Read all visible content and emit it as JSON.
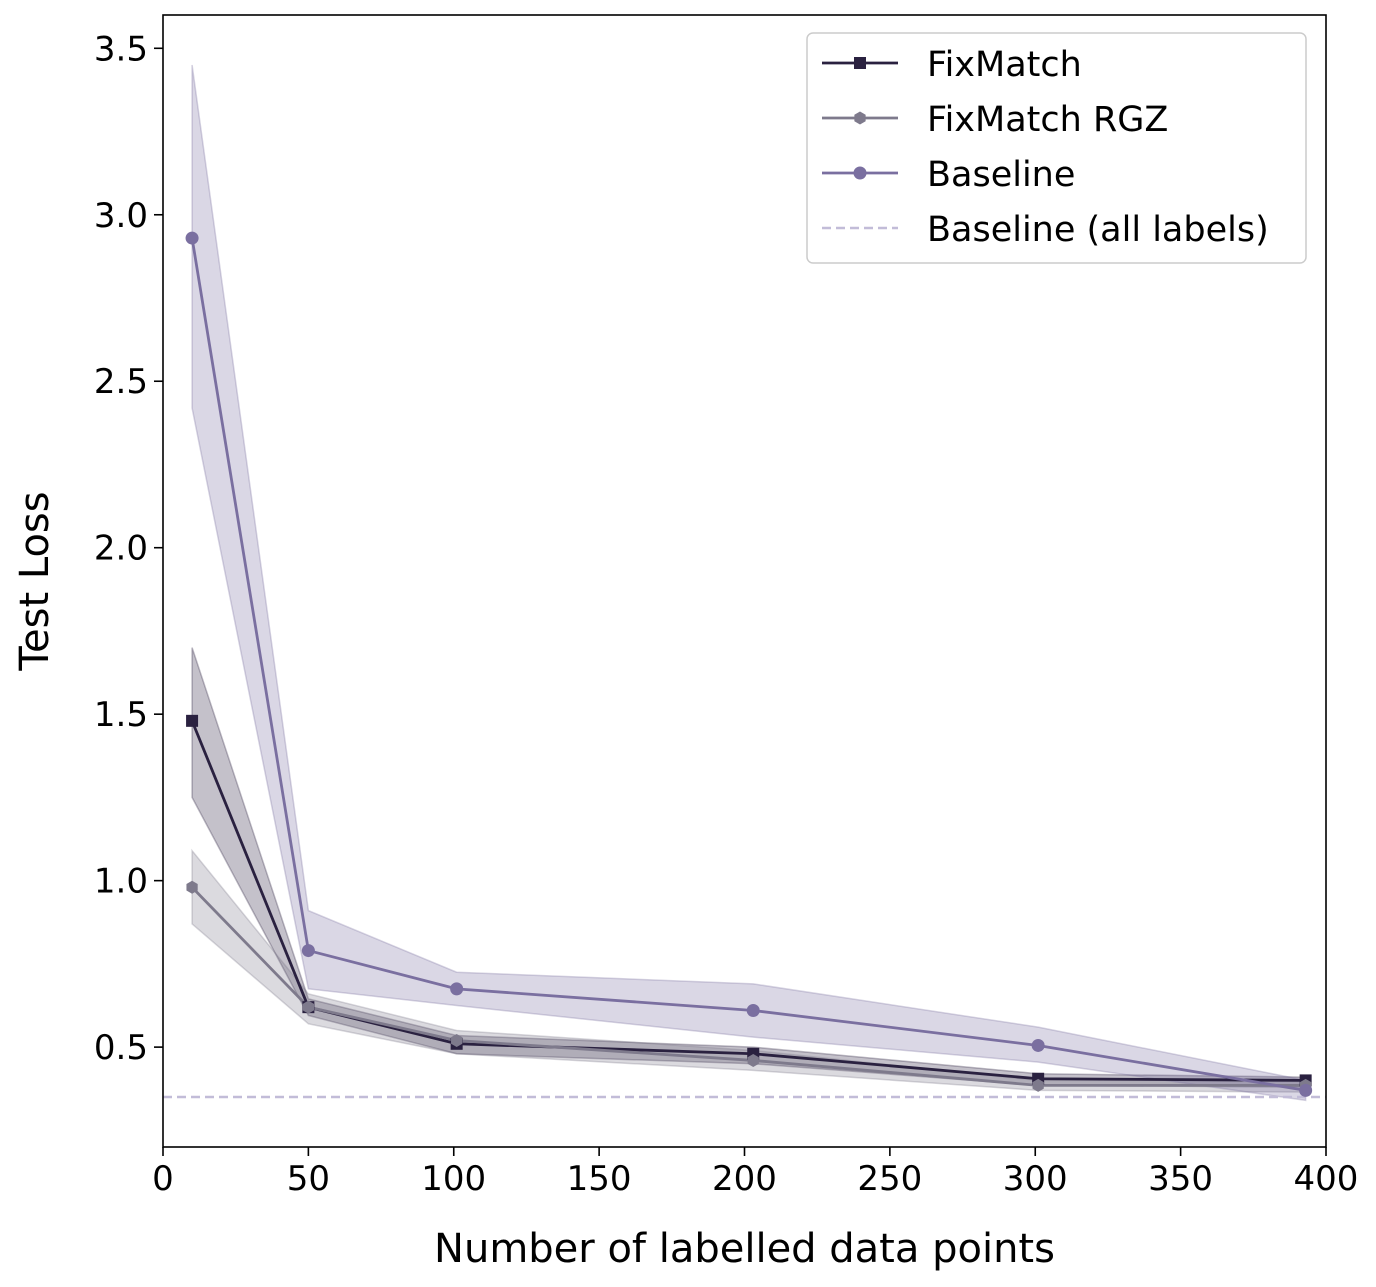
{
  "chart_data": {
    "type": "line",
    "title": "",
    "xlabel": "Number of labelled data points",
    "ylabel": "Test Loss",
    "xlim": [
      0,
      400
    ],
    "ylim": [
      0.2,
      3.6
    ],
    "xticks": [
      0,
      50,
      100,
      150,
      200,
      250,
      300,
      350,
      400
    ],
    "xtick_labels": [
      "0",
      "50",
      "100",
      "150",
      "200",
      "250",
      "300",
      "350",
      "400"
    ],
    "yticks": [
      0.5,
      1.0,
      1.5,
      2.0,
      2.5,
      3.0,
      3.5
    ],
    "ytick_labels": [
      "0.5",
      "1.0",
      "1.5",
      "2.0",
      "2.5",
      "3.0",
      "3.5"
    ],
    "grid": false,
    "legend_position": "top-right",
    "x": [
      10,
      50,
      101,
      203,
      301,
      393
    ],
    "series": [
      {
        "name": "FixMatch",
        "color": "#2a2140",
        "marker": "square",
        "values": [
          1.48,
          0.62,
          0.51,
          0.48,
          0.405,
          0.4
        ],
        "band_lower": [
          1.25,
          0.595,
          0.48,
          0.45,
          0.385,
          0.38
        ],
        "band_upper": [
          1.7,
          0.645,
          0.535,
          0.5,
          0.42,
          0.41
        ]
      },
      {
        "name": "FixMatch RGZ",
        "color": "#7e7a8c",
        "marker": "hexagon",
        "values": [
          0.98,
          0.62,
          0.52,
          0.46,
          0.385,
          0.385
        ],
        "band_lower": [
          0.87,
          0.57,
          0.48,
          0.43,
          0.37,
          0.365
        ],
        "band_upper": [
          1.09,
          0.66,
          0.55,
          0.49,
          0.4,
          0.4
        ]
      },
      {
        "name": "Baseline",
        "color": "#7a6fa0",
        "marker": "circle",
        "values": [
          2.93,
          0.79,
          0.675,
          0.61,
          0.505,
          0.37
        ],
        "band_lower": [
          2.42,
          0.675,
          0.625,
          0.53,
          0.455,
          0.34
        ],
        "band_upper": [
          3.45,
          0.91,
          0.725,
          0.69,
          0.56,
          0.4
        ]
      }
    ],
    "reference_lines": [
      {
        "name": "Baseline (all labels)",
        "value": 0.35,
        "color": "#c2bcd8",
        "style": "dashed"
      }
    ]
  }
}
